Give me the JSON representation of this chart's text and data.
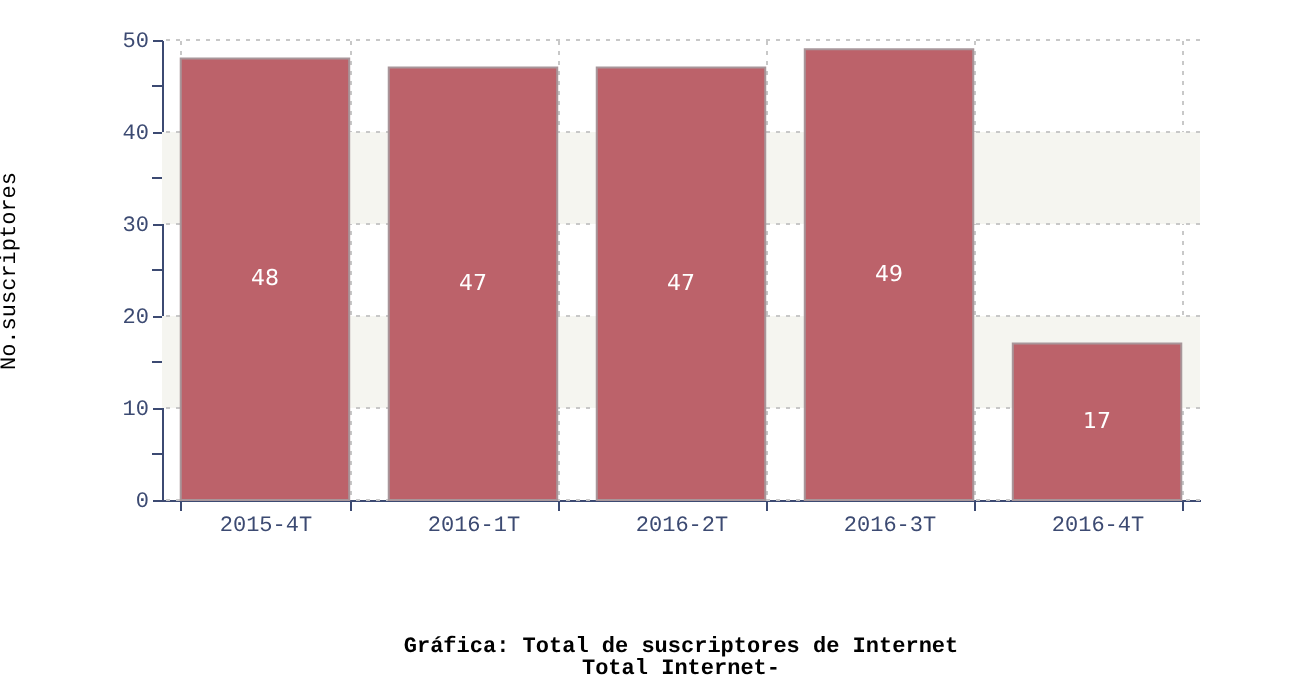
{
  "chart_data": {
    "type": "bar",
    "title": "Gráfica: Total de suscriptores de Internet",
    "subtitle": "Total Internet-",
    "ylabel": "No.suscriptores",
    "categories": [
      "2015-4T",
      "2016-1T",
      "2016-2T",
      "2016-3T",
      "2016-4T"
    ],
    "values": [
      48,
      47,
      47,
      49,
      17
    ],
    "color": "#bc626a",
    "data_labels": true,
    "ylim": [
      0,
      50
    ],
    "yticks": [
      0,
      {
        "value": 5,
        "label": null
      },
      10,
      {
        "value": 15,
        "label": null
      },
      20,
      {
        "value": 25,
        "label": null
      },
      30,
      {
        "value": 35,
        "label": null
      },
      40,
      {
        "value": 45,
        "label": null
      },
      50
    ],
    "bands": [
      {
        "axis": "y",
        "from": 10,
        "to": 20,
        "color": "#f5f5f0"
      },
      {
        "axis": "y",
        "from": 30,
        "to": 40,
        "color": "#f5f5f0"
      }
    ],
    "grid": true
  }
}
